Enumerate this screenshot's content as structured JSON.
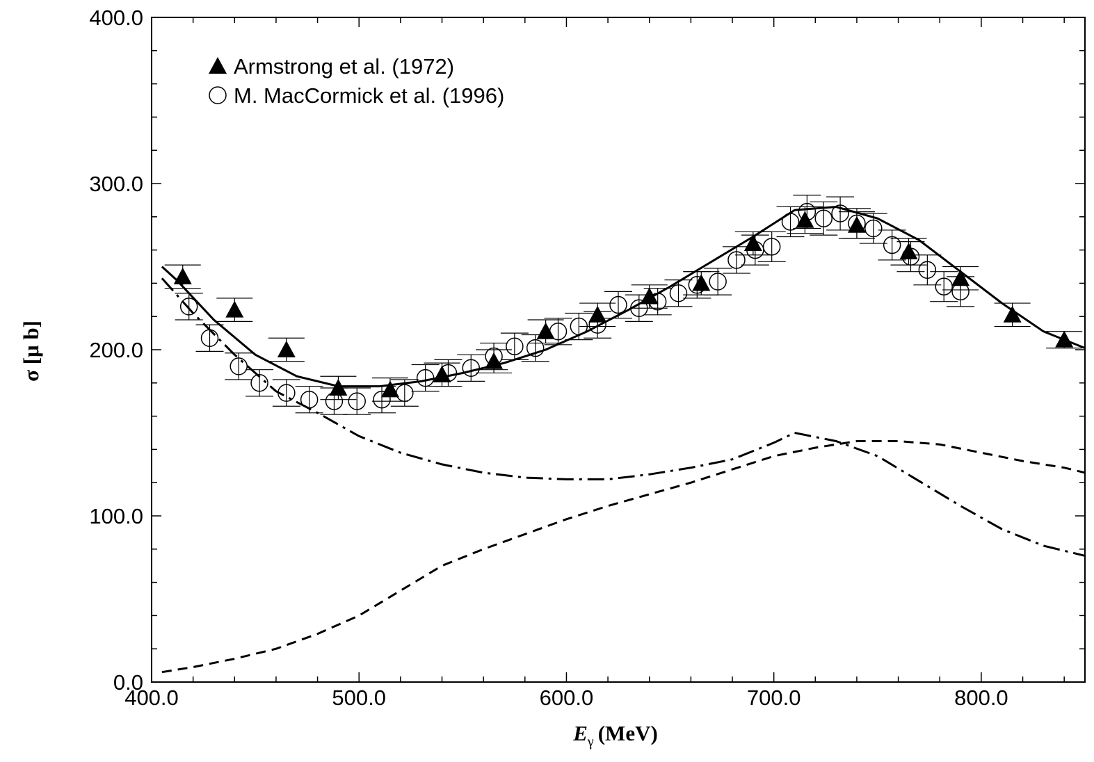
{
  "chart_data": {
    "type": "scatter",
    "title": "",
    "xlabel_symbol": "E",
    "xlabel_subscript": "γ",
    "xlabel_unit": "(MeV)",
    "ylabel": "σ [μ b]",
    "xlim": [
      400,
      850
    ],
    "ylim": [
      0,
      400
    ],
    "x_ticks": [
      "400.0",
      "500.0",
      "600.0",
      "700.0",
      "800.0"
    ],
    "y_ticks": [
      "0.0",
      "100.0",
      "200.0",
      "300.0",
      "400.0"
    ],
    "legend_position": "top-left",
    "series": [
      {
        "name": "Armstrong et al. (1972)",
        "marker": "filled-triangle",
        "points": [
          {
            "x": 415,
            "y": 244,
            "err": 7
          },
          {
            "x": 440,
            "y": 224,
            "err": 7
          },
          {
            "x": 465,
            "y": 200,
            "err": 7
          },
          {
            "x": 490,
            "y": 177,
            "err": 7
          },
          {
            "x": 515,
            "y": 176,
            "err": 7
          },
          {
            "x": 540,
            "y": 185,
            "err": 7
          },
          {
            "x": 565,
            "y": 193,
            "err": 7
          },
          {
            "x": 590,
            "y": 211,
            "err": 7
          },
          {
            "x": 615,
            "y": 221,
            "err": 7
          },
          {
            "x": 640,
            "y": 232,
            "err": 7
          },
          {
            "x": 665,
            "y": 240,
            "err": 7
          },
          {
            "x": 690,
            "y": 264,
            "err": 7
          },
          {
            "x": 715,
            "y": 278,
            "err": 8
          },
          {
            "x": 740,
            "y": 275,
            "err": 8
          },
          {
            "x": 765,
            "y": 259,
            "err": 8
          },
          {
            "x": 790,
            "y": 243,
            "err": 7
          },
          {
            "x": 815,
            "y": 221,
            "err": 7
          },
          {
            "x": 840,
            "y": 206,
            "err": 5
          }
        ]
      },
      {
        "name": "M. MacCormick et al. (1996)",
        "marker": "open-circle",
        "points": [
          {
            "x": 418,
            "y": 226,
            "err": 8
          },
          {
            "x": 428,
            "y": 207,
            "err": 8
          },
          {
            "x": 442,
            "y": 190,
            "err": 8
          },
          {
            "x": 452,
            "y": 180,
            "err": 8
          },
          {
            "x": 465,
            "y": 174,
            "err": 8
          },
          {
            "x": 476,
            "y": 170,
            "err": 8
          },
          {
            "x": 488,
            "y": 169,
            "err": 8
          },
          {
            "x": 499,
            "y": 169,
            "err": 8
          },
          {
            "x": 511,
            "y": 170,
            "err": 8
          },
          {
            "x": 522,
            "y": 174,
            "err": 8
          },
          {
            "x": 532,
            "y": 183,
            "err": 8
          },
          {
            "x": 543,
            "y": 186,
            "err": 8
          },
          {
            "x": 554,
            "y": 189,
            "err": 8
          },
          {
            "x": 565,
            "y": 196,
            "err": 8
          },
          {
            "x": 575,
            "y": 202,
            "err": 8
          },
          {
            "x": 585,
            "y": 201,
            "err": 8
          },
          {
            "x": 596,
            "y": 211,
            "err": 8
          },
          {
            "x": 606,
            "y": 214,
            "err": 8
          },
          {
            "x": 615,
            "y": 215,
            "err": 8
          },
          {
            "x": 625,
            "y": 227,
            "err": 8
          },
          {
            "x": 635,
            "y": 225,
            "err": 8
          },
          {
            "x": 644,
            "y": 229,
            "err": 8
          },
          {
            "x": 654,
            "y": 234,
            "err": 8
          },
          {
            "x": 663,
            "y": 239,
            "err": 8
          },
          {
            "x": 673,
            "y": 241,
            "err": 8
          },
          {
            "x": 682,
            "y": 254,
            "err": 8
          },
          {
            "x": 691,
            "y": 260,
            "err": 9
          },
          {
            "x": 699,
            "y": 262,
            "err": 9
          },
          {
            "x": 708,
            "y": 277,
            "err": 9
          },
          {
            "x": 716,
            "y": 283,
            "err": 10
          },
          {
            "x": 724,
            "y": 279,
            "err": 10
          },
          {
            "x": 732,
            "y": 282,
            "err": 10
          },
          {
            "x": 740,
            "y": 276,
            "err": 9
          },
          {
            "x": 748,
            "y": 273,
            "err": 9
          },
          {
            "x": 757,
            "y": 263,
            "err": 9
          },
          {
            "x": 766,
            "y": 256,
            "err": 9
          },
          {
            "x": 774,
            "y": 248,
            "err": 9
          },
          {
            "x": 782,
            "y": 238,
            "err": 9
          },
          {
            "x": 790,
            "y": 235,
            "err": 9
          }
        ]
      }
    ],
    "curves": [
      {
        "style": "solid",
        "x": [
          405,
          412,
          430,
          450,
          470,
          490,
          510,
          530,
          550,
          570,
          590,
          610,
          630,
          650,
          670,
          690,
          710,
          730,
          750,
          770,
          790,
          810,
          830,
          850
        ],
        "y": [
          250,
          242,
          218,
          197,
          184,
          178,
          178,
          181,
          186,
          192,
          200,
          211,
          224,
          238,
          253,
          268,
          284,
          286,
          279,
          266,
          247,
          228,
          211,
          201
        ]
      },
      {
        "style": "dash-dot",
        "x": [
          405,
          420,
          440,
          460,
          480,
          500,
          520,
          540,
          560,
          580,
          600,
          620,
          640,
          660,
          680,
          700,
          710,
          730,
          750,
          770,
          790,
          810,
          830,
          850
        ],
        "y": [
          243,
          222,
          197,
          175,
          162,
          148,
          138,
          131,
          126,
          123,
          122,
          122,
          125,
          129,
          134,
          144,
          150,
          145,
          136,
          121,
          106,
          92,
          82,
          76
        ]
      },
      {
        "style": "dashed",
        "x": [
          405,
          420,
          440,
          460,
          480,
          500,
          520,
          540,
          560,
          580,
          600,
          620,
          640,
          660,
          680,
          700,
          720,
          740,
          760,
          780,
          800,
          820,
          840,
          850
        ],
        "y": [
          6,
          9,
          14,
          20,
          29,
          40,
          55,
          70,
          80,
          89,
          98,
          106,
          113,
          120,
          128,
          136,
          141,
          145,
          145,
          143,
          138,
          133,
          129,
          126
        ]
      }
    ]
  }
}
